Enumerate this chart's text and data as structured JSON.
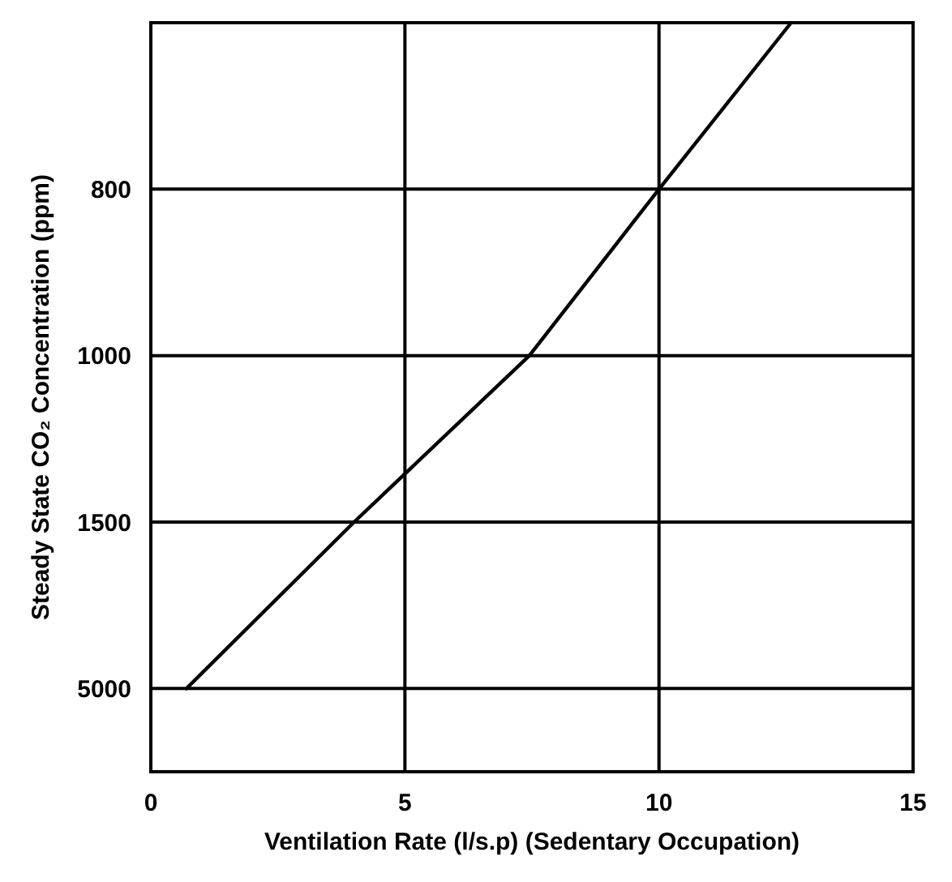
{
  "chart_data": {
    "type": "line",
    "orientation": "horizontal",
    "xlabel": "Ventilation Rate (l/s.p) (Sedentary Occupation)",
    "ylabel": "Steady State CO₂ Concentration (ppm)",
    "categories": [
      null,
      "800",
      "1000",
      "1500",
      "5000"
    ],
    "series": [
      {
        "color": "#000000",
        "values": [
          12.6,
          10,
          7.45,
          4,
          0.7
        ]
      }
    ],
    "xlim": [
      0,
      15
    ],
    "xticks": [
      0,
      5,
      10,
      15
    ],
    "grid": true,
    "marker": "none",
    "line_style": "solid"
  }
}
